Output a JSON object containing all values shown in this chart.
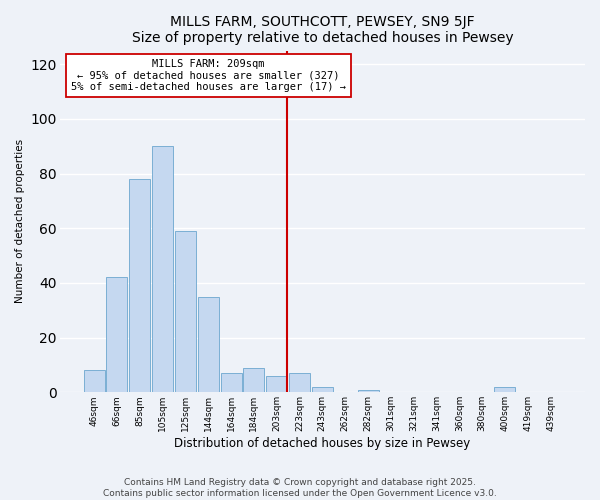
{
  "title": "MILLS FARM, SOUTHCOTT, PEWSEY, SN9 5JF",
  "subtitle": "Size of property relative to detached houses in Pewsey",
  "xlabel": "Distribution of detached houses by size in Pewsey",
  "ylabel": "Number of detached properties",
  "bar_labels": [
    "46sqm",
    "66sqm",
    "85sqm",
    "105sqm",
    "125sqm",
    "144sqm",
    "164sqm",
    "184sqm",
    "203sqm",
    "223sqm",
    "243sqm",
    "262sqm",
    "282sqm",
    "301sqm",
    "321sqm",
    "341sqm",
    "360sqm",
    "380sqm",
    "400sqm",
    "419sqm",
    "439sqm"
  ],
  "bar_values": [
    8,
    42,
    78,
    90,
    59,
    35,
    7,
    9,
    6,
    7,
    2,
    0,
    1,
    0,
    0,
    0,
    0,
    0,
    2,
    0,
    0
  ],
  "bar_color": "#c5d8f0",
  "bar_edge_color": "#7bafd4",
  "vline_index": 8,
  "vline_color": "#cc0000",
  "ylim": [
    0,
    125
  ],
  "yticks": [
    0,
    20,
    40,
    60,
    80,
    100,
    120
  ],
  "annotation_title": "MILLS FARM: 209sqm",
  "annotation_line1": "← 95% of detached houses are smaller (327)",
  "annotation_line2": "5% of semi-detached houses are larger (17) →",
  "annotation_box_color": "#ffffff",
  "annotation_box_edge": "#cc0000",
  "footer_line1": "Contains HM Land Registry data © Crown copyright and database right 2025.",
  "footer_line2": "Contains public sector information licensed under the Open Government Licence v3.0.",
  "bg_color": "#eef2f8",
  "grid_color": "#ffffff",
  "title_fontsize": 10,
  "footer_fontsize": 6.5
}
